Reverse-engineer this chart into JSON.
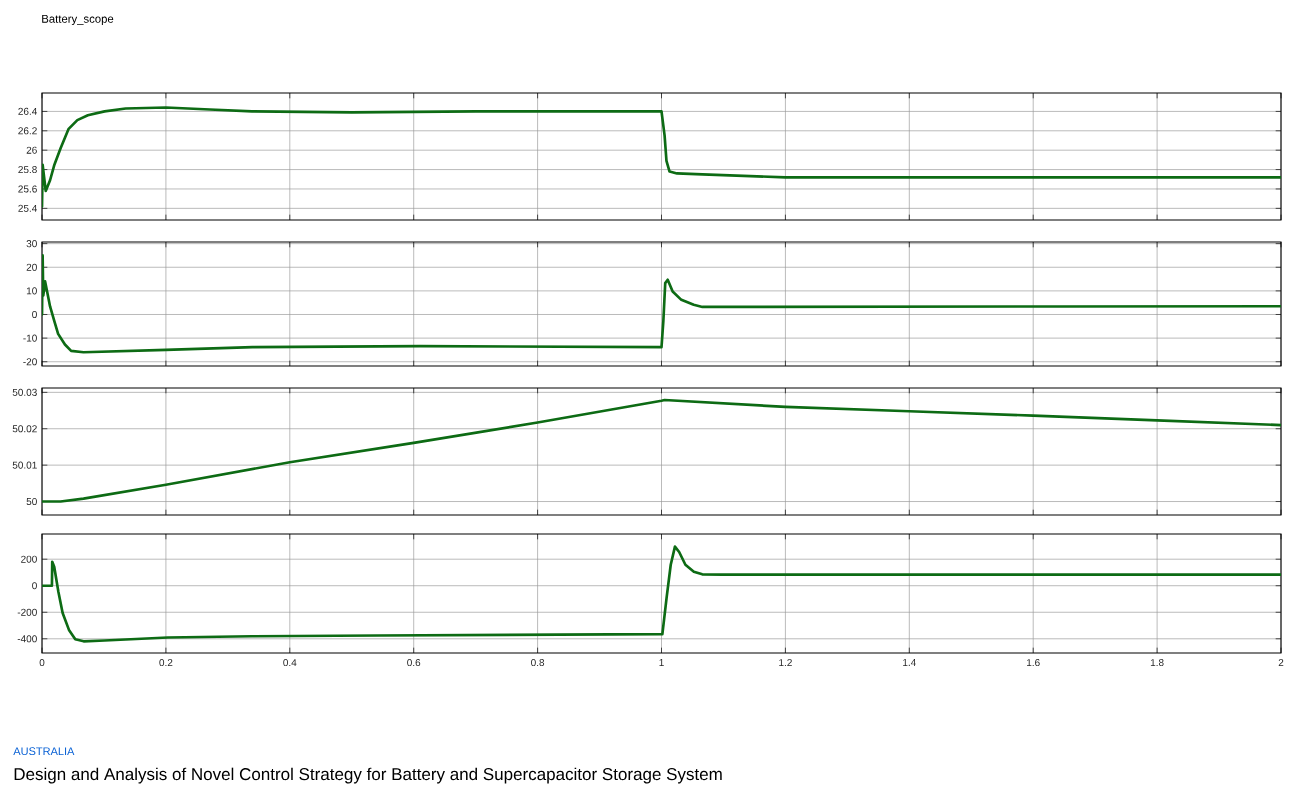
{
  "chart_data": [
    {
      "type": "line",
      "title": "Battery_scope",
      "xlim": [
        0,
        2
      ],
      "xticks": [
        0,
        0.2,
        0.4,
        0.6,
        0.8,
        1,
        1.2,
        1.4,
        1.6,
        1.8,
        2
      ],
      "ylim": [
        25.28,
        26.59
      ],
      "yticks": [
        25.4,
        25.6,
        25.8,
        26,
        26.2,
        26.4
      ],
      "grid": true,
      "tick_labels": "y",
      "color": "#0d6b14",
      "x": [
        0,
        0.001,
        0.006,
        0.013,
        0.02,
        0.03,
        0.043,
        0.057,
        0.074,
        0.101,
        0.135,
        0.2,
        0.271,
        0.339,
        0.5,
        0.7,
        0.85,
        1.0,
        1.005,
        1.008,
        1.013,
        1.025,
        1.066,
        1.2,
        1.4,
        1.6,
        1.8,
        2
      ],
      "values": [
        25.42,
        25.85,
        25.58,
        25.69,
        25.85,
        26.02,
        26.22,
        26.31,
        26.36,
        26.4,
        26.43,
        26.44,
        26.42,
        26.4,
        26.39,
        26.4,
        26.4,
        26.4,
        26.15,
        25.89,
        25.78,
        25.76,
        25.75,
        25.72,
        25.72,
        25.72,
        25.72,
        25.72
      ]
    },
    {
      "type": "line",
      "xlim": [
        0,
        2
      ],
      "xticks": [
        0,
        0.2,
        0.4,
        0.6,
        0.8,
        1,
        1.2,
        1.4,
        1.6,
        1.8,
        2
      ],
      "ylim": [
        -21.8,
        30.7
      ],
      "yticks": [
        -20,
        -10,
        0,
        10,
        20,
        30
      ],
      "grid": true,
      "tick_labels": "y",
      "color": "#0d6b14",
      "x": [
        0,
        0.001,
        0.002,
        0.005,
        0.013,
        0.02,
        0.026,
        0.037,
        0.047,
        0.067,
        0.2,
        0.34,
        0.61,
        1.0,
        1.003,
        1.006,
        1.01,
        1.018,
        1.032,
        1.052,
        1.066,
        1.167,
        1.642,
        2
      ],
      "values": [
        0,
        25,
        8,
        14,
        3.4,
        -2.9,
        -8.2,
        -12.7,
        -15.4,
        -16,
        -15,
        -13.8,
        -13.4,
        -13.8,
        -2.7,
        13.3,
        14.7,
        9.7,
        6.2,
        4.1,
        3.2,
        3.2,
        3.4,
        3.5
      ]
    },
    {
      "type": "line",
      "xlim": [
        0,
        2
      ],
      "xticks": [
        0,
        0.2,
        0.4,
        0.6,
        0.8,
        1,
        1.2,
        1.4,
        1.6,
        1.8,
        2
      ],
      "ylim": [
        49.9963,
        50.0312
      ],
      "yticks": [
        50,
        50.01,
        50.02,
        50.03
      ],
      "grid": true,
      "tick_labels": "y",
      "color": "#0d6b14",
      "x": [
        0,
        0.03,
        0.067,
        0.2,
        0.4,
        0.6,
        0.8,
        1.0,
        1.005,
        1.2,
        1.4,
        1.6,
        1.8,
        2
      ],
      "values": [
        50,
        50,
        50.0008,
        50.0046,
        50.0108,
        50.0161,
        50.0217,
        50.0277,
        50.0279,
        50.026,
        50.0248,
        50.0236,
        50.0223,
        50.021
      ]
    },
    {
      "type": "line",
      "xlim": [
        0,
        2
      ],
      "xticks": [
        0,
        0.2,
        0.4,
        0.6,
        0.8,
        1,
        1.2,
        1.4,
        1.6,
        1.8,
        2
      ],
      "ylim": [
        -507,
        390
      ],
      "yticks": [
        -400,
        -200,
        0,
        200
      ],
      "grid": true,
      "color": "#0d6b14",
      "x": [
        0,
        0.016,
        0.0165,
        0.0197,
        0.0265,
        0.0333,
        0.0435,
        0.0537,
        0.0672,
        0.101,
        0.203,
        0.339,
        0.543,
        1.0,
        1.0014,
        1.0081,
        1.0149,
        1.0217,
        1.0285,
        1.0386,
        1.0522,
        1.0658,
        1.1,
        2
      ],
      "values": [
        0,
        0,
        181,
        143,
        -48,
        -206,
        -333,
        -403,
        -419,
        -413,
        -390,
        -381,
        -375,
        -365,
        -365,
        -95,
        158,
        295,
        254,
        158,
        106,
        86,
        84,
        84
      ],
      "annotations": [
        "AUSTRALIA",
        "Design and Analysis of Novel Control Strategy for Battery and Supercapacitor Storage System"
      ]
    }
  ]
}
